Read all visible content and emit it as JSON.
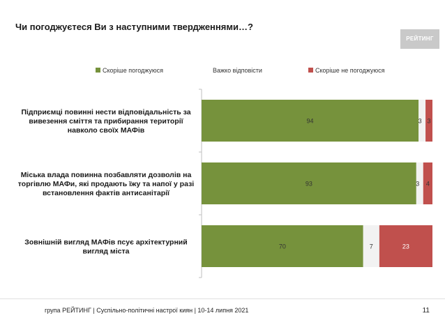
{
  "header": {
    "title": "Чи погоджуєтеся Ви з наступними твердженнями…?",
    "logo_text": "РЕЙТИНГ"
  },
  "footer": {
    "source": "група РЕЙТИНГ | Суспільно-політичні настрої киян | 10-14 липня 2021",
    "page_number": "11"
  },
  "chart_data": {
    "type": "bar",
    "orientation": "horizontal",
    "stacked": true,
    "xlim": [
      0,
      100
    ],
    "legend_position": "top",
    "categories": [
      [
        "Підприємці повинні нести відповідальність за",
        "вивезення сміття та прибирання території",
        "навколо своїх МАФів"
      ],
      [
        "Міська влада повинна позбавляти дозволів на",
        "торгівлю МАФи, які продають їжу та напої у разі",
        "встановлення фактів антисанітарії"
      ],
      [
        "Зовнішній вигляд МАФів псує архітектурний",
        "вигляд міста"
      ]
    ],
    "series": [
      {
        "name": "Скоріше погоджуюся",
        "color": "#76923c",
        "values": [
          94,
          93,
          70
        ]
      },
      {
        "name": "Важко відповісти",
        "color": "#f2f2f2",
        "values": [
          3,
          3,
          7
        ]
      },
      {
        "name": "Скоріше не погоджуюся",
        "color": "#c0504d",
        "values": [
          3,
          4,
          23
        ]
      }
    ]
  }
}
